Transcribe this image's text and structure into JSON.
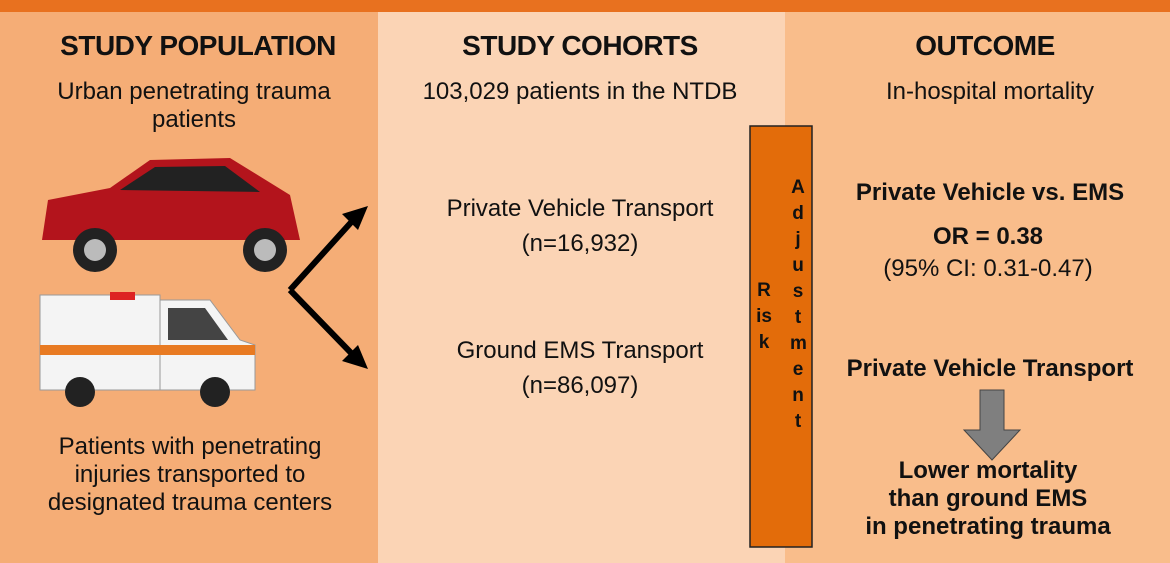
{
  "population": {
    "heading": "STUDY POPULATION",
    "subtitle_lines": [
      "Urban penetrating trauma",
      "patients"
    ],
    "footer_lines": [
      "Patients with penetrating",
      "injuries transported to",
      "designated trauma centers"
    ]
  },
  "cohorts": {
    "heading": "STUDY COHORTS",
    "subtitle": "103,029 patients in the NTDB",
    "groups": [
      {
        "name": "Private Vehicle Transport",
        "n": "(n=16,932)"
      },
      {
        "name": "Ground EMS Transport",
        "n": "(n=86,097)"
      }
    ]
  },
  "adjustment": {
    "word1": "Risk",
    "word2": "Adjustment"
  },
  "outcome": {
    "heading": "OUTCOME",
    "subtitle": "In-hospital mortality",
    "comparison": "Private Vehicle vs. EMS",
    "odds_ratio": "OR = 0.38",
    "ci": "(95% CI: 0.31-0.47)",
    "result_label": "Private Vehicle Transport",
    "conclusion_lines": [
      "Lower mortality",
      "than ground EMS",
      "in penetrating trauma"
    ]
  }
}
